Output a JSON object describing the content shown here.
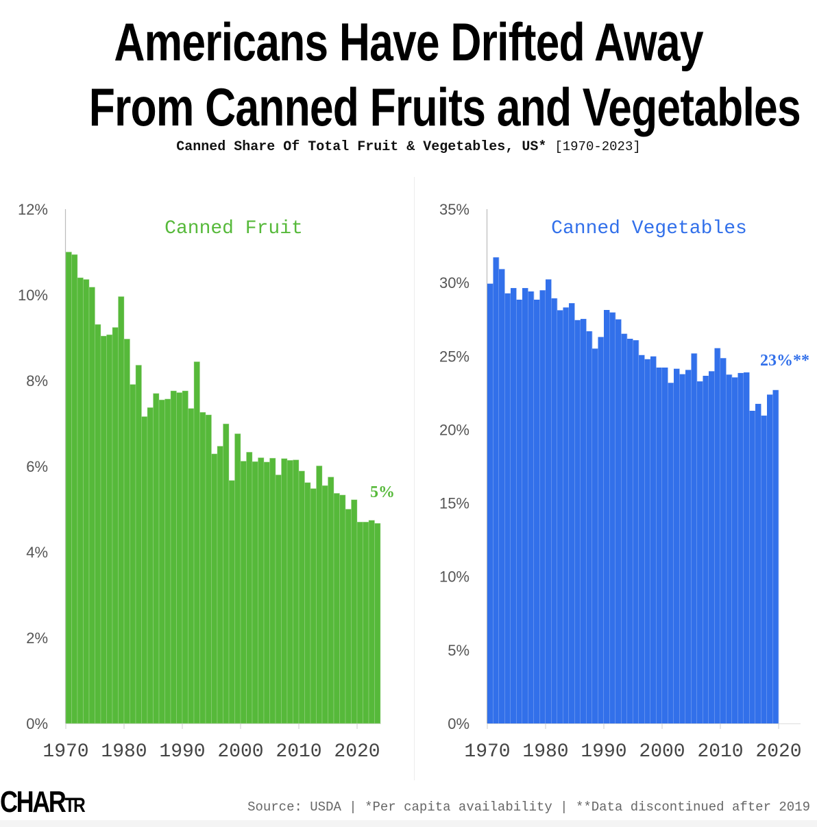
{
  "header": {
    "title_line1": "Americans Have Drifted Away",
    "title_line2": "From Canned Fruits and Vegetables",
    "subtitle": "Canned Share Of Total Fruit & Vegetables, US*",
    "subtitle_range": "[1970-2023]"
  },
  "footer": {
    "logo_main": "CHAR",
    "logo_small": "TR",
    "source": "Source: USDA | *Per capita availability | **Data discontinued after 2019"
  },
  "colors": {
    "fruit": "#56b93a",
    "vegetables": "#3270ea",
    "axis_text": "#555555"
  },
  "chart_data": [
    {
      "type": "bar",
      "title": "Canned Fruit",
      "xlabel": "",
      "ylabel": "",
      "ylim": [
        0,
        12
      ],
      "yticks": [
        0,
        2,
        4,
        6,
        8,
        10,
        12
      ],
      "ytick_labels": [
        "0%",
        "2%",
        "4%",
        "6%",
        "8%",
        "10%",
        "12%"
      ],
      "xticks": [
        1970,
        1980,
        1990,
        2000,
        2010,
        2020
      ],
      "xtick_labels": [
        "1970",
        "1980",
        "1990",
        "2000",
        "2010",
        "2020"
      ],
      "end_annotation": "5%",
      "grid": false,
      "color": "#56b93a",
      "x": [
        1970,
        1971,
        1972,
        1973,
        1974,
        1975,
        1976,
        1977,
        1978,
        1979,
        1980,
        1981,
        1982,
        1983,
        1984,
        1985,
        1986,
        1987,
        1988,
        1989,
        1990,
        1991,
        1992,
        1993,
        1994,
        1995,
        1996,
        1997,
        1998,
        1999,
        2000,
        2001,
        2002,
        2003,
        2004,
        2005,
        2006,
        2007,
        2008,
        2009,
        2010,
        2011,
        2012,
        2013,
        2014,
        2015,
        2016,
        2017,
        2018,
        2019,
        2020,
        2021,
        2022,
        2023
      ],
      "values": [
        11.0,
        10.94,
        10.4,
        10.36,
        10.18,
        9.31,
        9.04,
        9.07,
        9.24,
        9.96,
        8.97,
        7.91,
        8.36,
        7.16,
        7.37,
        7.7,
        7.55,
        7.57,
        7.76,
        7.72,
        7.76,
        7.35,
        8.44,
        7.26,
        7.2,
        6.29,
        6.47,
        6.99,
        5.67,
        6.76,
        6.12,
        6.33,
        6.11,
        6.2,
        6.1,
        6.19,
        5.8,
        6.18,
        6.14,
        6.15,
        5.89,
        5.62,
        5.48,
        6.01,
        5.55,
        5.75,
        5.37,
        5.33,
        5.0,
        5.22,
        4.7,
        4.7,
        4.74,
        4.67
      ]
    },
    {
      "type": "bar",
      "title": "Canned Vegetables",
      "xlabel": "",
      "ylabel": "",
      "ylim": [
        0,
        35
      ],
      "yticks": [
        0,
        5,
        10,
        15,
        20,
        25,
        30,
        35
      ],
      "ytick_labels": [
        "0%",
        "5%",
        "10%",
        "15%",
        "20%",
        "25%",
        "30%",
        "35%"
      ],
      "xticks": [
        1970,
        1980,
        1990,
        2000,
        2010,
        2020
      ],
      "xtick_labels": [
        "1970",
        "1980",
        "1990",
        "2000",
        "2010",
        "2020"
      ],
      "end_annotation": "23%**",
      "grid": false,
      "color": "#3270ea",
      "x": [
        1970,
        1971,
        1972,
        1973,
        1974,
        1975,
        1976,
        1977,
        1978,
        1979,
        1980,
        1981,
        1982,
        1983,
        1984,
        1985,
        1986,
        1987,
        1988,
        1989,
        1990,
        1991,
        1992,
        1993,
        1994,
        1995,
        1996,
        1997,
        1998,
        1999,
        2000,
        2001,
        2002,
        2003,
        2004,
        2005,
        2006,
        2007,
        2008,
        2009,
        2010,
        2011,
        2012,
        2013,
        2014,
        2015,
        2016,
        2017,
        2018,
        2019
      ],
      "values": [
        29.93,
        31.72,
        30.92,
        29.27,
        29.63,
        28.84,
        29.63,
        29.4,
        28.84,
        29.48,
        30.22,
        28.93,
        28.12,
        28.31,
        28.6,
        27.45,
        27.53,
        26.69,
        25.51,
        26.3,
        28.14,
        27.97,
        27.5,
        26.52,
        26.18,
        26.08,
        25.07,
        24.79,
        24.98,
        24.22,
        24.22,
        23.18,
        24.14,
        23.77,
        24.06,
        25.18,
        23.28,
        23.66,
        23.97,
        25.54,
        24.86,
        23.74,
        23.55,
        23.85,
        23.89,
        21.28,
        21.75,
        20.95,
        22.38,
        22.69
      ]
    }
  ]
}
